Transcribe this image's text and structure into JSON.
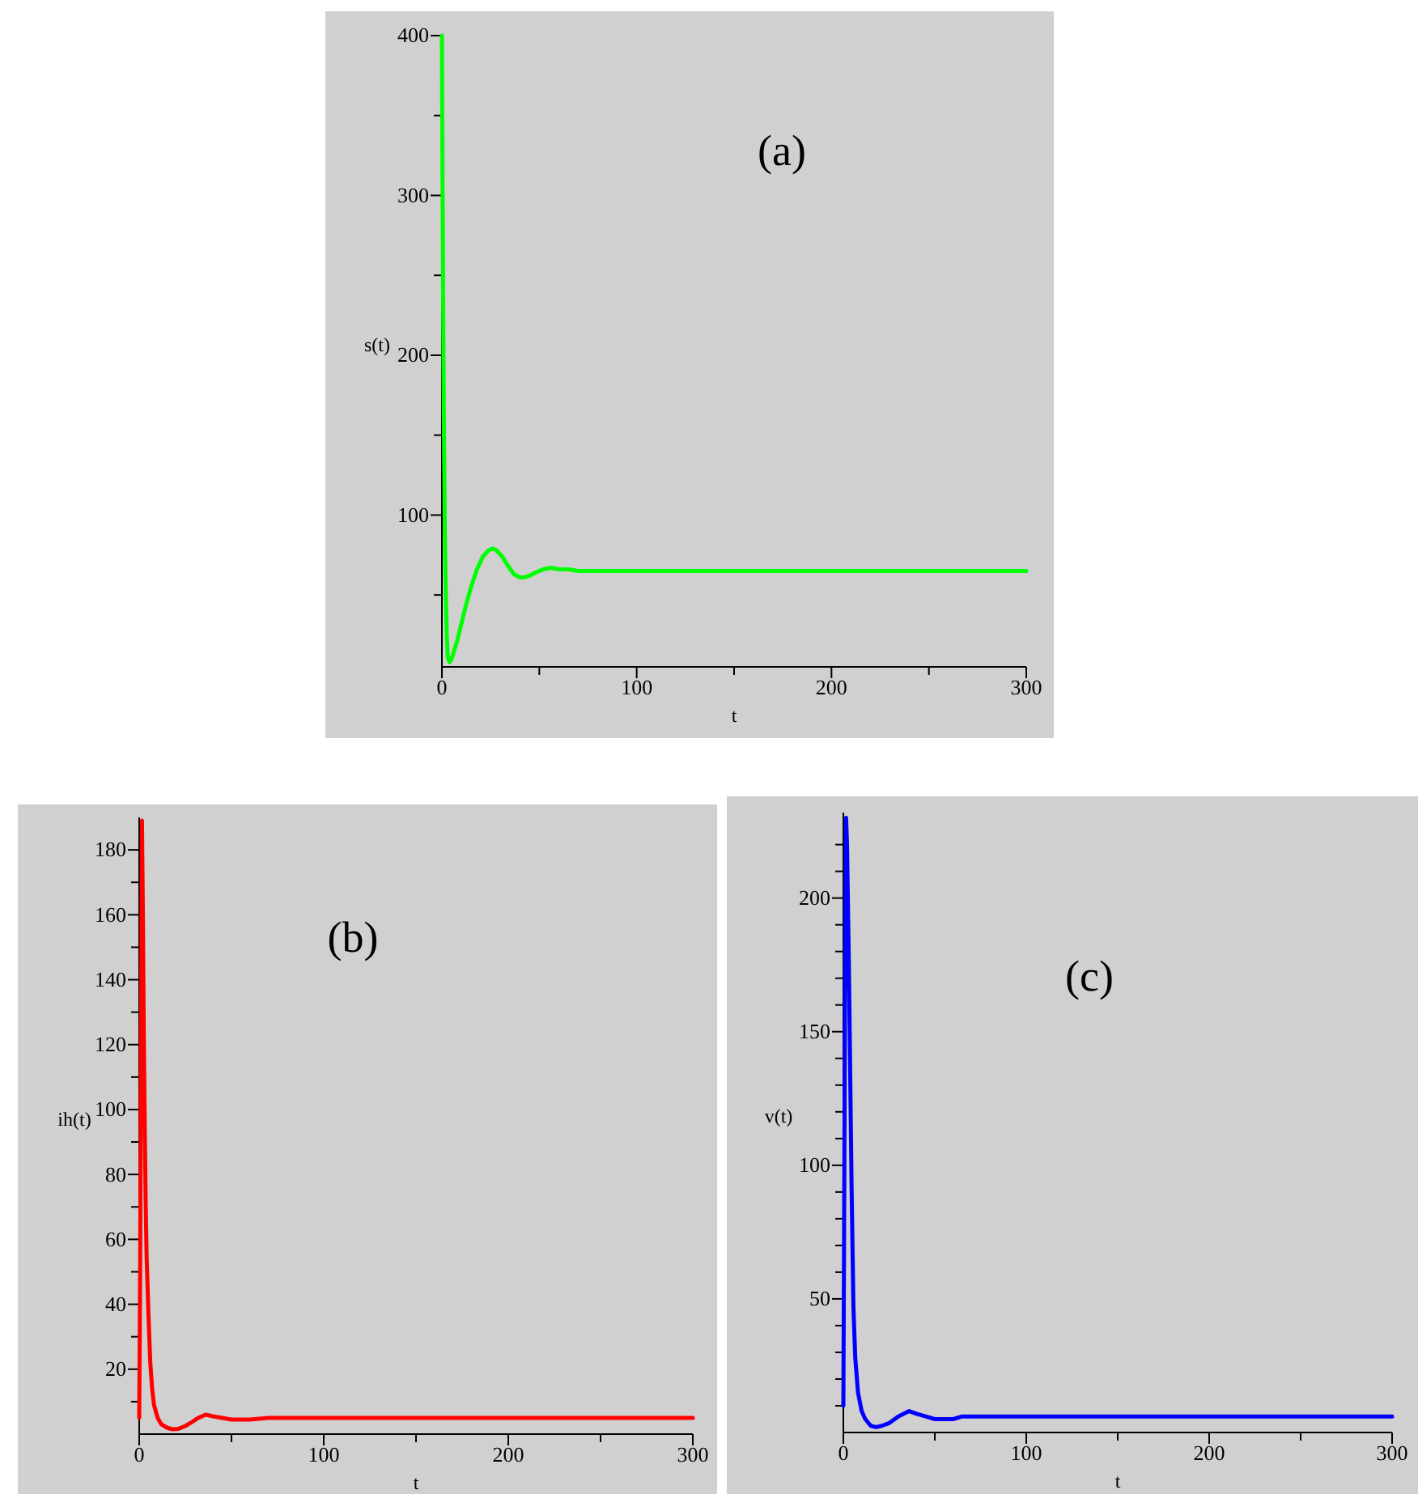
{
  "chart_data": [
    {
      "type": "line",
      "xlabel": "t",
      "ylabel": "s(t)",
      "annotations": [
        "(a)"
      ],
      "grid": false,
      "xlim": [
        0,
        300
      ],
      "ylim": [
        5,
        400
      ],
      "xticks": [
        0,
        {
          "value": 50,
          "label": null
        },
        100,
        {
          "value": 150,
          "label": null
        },
        200,
        {
          "value": 250,
          "label": null
        },
        300
      ],
      "yticks": [
        {
          "value": 50,
          "label": null
        },
        100,
        {
          "value": 150,
          "label": null
        },
        200,
        {
          "value": 250,
          "label": null
        },
        300,
        {
          "value": 350,
          "label": null
        },
        400
      ],
      "series": [
        {
          "color": "#00ff00",
          "x": [
            0,
            0.3,
            0.6,
            1,
            1.5,
            2,
            2.5,
            3,
            3.5,
            4,
            5,
            6,
            8,
            10,
            12,
            15,
            18,
            21,
            24,
            26,
            28,
            31,
            34,
            37,
            40,
            42,
            45,
            48,
            52,
            56,
            60,
            65,
            70,
            80,
            100,
            150,
            200,
            250,
            300
          ],
          "values": [
            400,
            320,
            240,
            160,
            90,
            50,
            25,
            12,
            9,
            8,
            10,
            14,
            22,
            32,
            42,
            55,
            66,
            74,
            78,
            79,
            78,
            74,
            68,
            63,
            61,
            61,
            62,
            64,
            66,
            67,
            66,
            66,
            65,
            65,
            65,
            65,
            65,
            65,
            65
          ]
        }
      ]
    },
    {
      "type": "line",
      "xlabel": "t",
      "ylabel": "ih(t)",
      "annotations": [
        "(b)"
      ],
      "grid": false,
      "xlim": [
        0,
        300
      ],
      "ylim": [
        0,
        190
      ],
      "xticks": [
        0,
        {
          "value": 50,
          "label": null
        },
        100,
        {
          "value": 150,
          "label": null
        },
        200,
        {
          "value": 250,
          "label": null
        },
        300
      ],
      "yticks": [
        {
          "value": 10,
          "label": null
        },
        20,
        {
          "value": 30,
          "label": null
        },
        40,
        {
          "value": 50,
          "label": null
        },
        60,
        {
          "value": 70,
          "label": null
        },
        80,
        {
          "value": 90,
          "label": null
        },
        100,
        {
          "value": 110,
          "label": null
        },
        120,
        {
          "value": 130,
          "label": null
        },
        140,
        {
          "value": 150,
          "label": null
        },
        160,
        {
          "value": 170,
          "label": null
        },
        180
      ],
      "series": [
        {
          "color": "#ff0000",
          "x": [
            0,
            0.5,
            1,
            1.5,
            2,
            2.5,
            3,
            3.5,
            4,
            5,
            6,
            7,
            8,
            10,
            12,
            15,
            18,
            21,
            25,
            28,
            32,
            36,
            40,
            45,
            50,
            55,
            60,
            70,
            80,
            100,
            150,
            200,
            250,
            300
          ],
          "values": [
            5,
            50,
            120,
            189,
            160,
            122,
            95,
            72,
            55,
            37,
            22,
            14,
            9,
            5,
            3,
            2,
            1.5,
            1.6,
            2.5,
            3.5,
            5,
            6,
            5.5,
            5,
            4.5,
            4.5,
            4.5,
            5,
            5,
            5,
            5,
            5,
            5,
            5
          ]
        }
      ]
    },
    {
      "type": "line",
      "xlabel": "t",
      "ylabel": "v(t)",
      "annotations": [
        "(c)"
      ],
      "grid": false,
      "xlim": [
        0,
        300
      ],
      "ylim": [
        0,
        232
      ],
      "xticks": [
        0,
        {
          "value": 50,
          "label": null
        },
        100,
        {
          "value": 150,
          "label": null
        },
        200,
        {
          "value": 250,
          "label": null
        },
        300
      ],
      "yticks": [
        {
          "value": 10,
          "label": null
        },
        {
          "value": 20,
          "label": null
        },
        {
          "value": 30,
          "label": null
        },
        {
          "value": 40,
          "label": null
        },
        50,
        {
          "value": 60,
          "label": null
        },
        {
          "value": 70,
          "label": null
        },
        {
          "value": 80,
          "label": null
        },
        {
          "value": 90,
          "label": null
        },
        100,
        {
          "value": 110,
          "label": null
        },
        {
          "value": 120,
          "label": null
        },
        {
          "value": 130,
          "label": null
        },
        {
          "value": 140,
          "label": null
        },
        150,
        {
          "value": 160,
          "label": null
        },
        {
          "value": 170,
          "label": null
        },
        {
          "value": 180,
          "label": null
        },
        {
          "value": 190,
          "label": null
        },
        200,
        {
          "value": 210,
          "label": null
        },
        {
          "value": 220,
          "label": null
        }
      ],
      "series": [
        {
          "color": "#0000ff",
          "x": [
            0,
            0.5,
            1,
            1.5,
            2,
            3,
            4,
            4.5,
            5.5,
            6.5,
            8,
            10,
            12,
            15,
            18,
            21,
            25,
            30,
            36,
            40,
            45,
            50,
            55,
            60,
            65,
            80,
            100,
            150,
            200,
            250,
            300
          ],
          "values": [
            10,
            90,
            180,
            230,
            220,
            176,
            120,
            92,
            47,
            28,
            15,
            8,
            5,
            2.5,
            2,
            2.5,
            3.5,
            6,
            8,
            7,
            6,
            5,
            5,
            5,
            6,
            6,
            6,
            6,
            6,
            6,
            6
          ]
        }
      ]
    }
  ]
}
